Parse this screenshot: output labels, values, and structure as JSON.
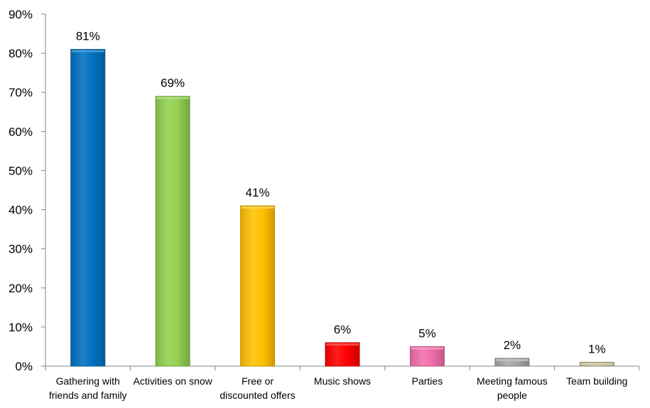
{
  "chart_data": {
    "type": "bar",
    "title": "",
    "xlabel": "",
    "ylabel": "",
    "categories": [
      [
        "Gathering with",
        "friends and family"
      ],
      [
        "Activities on snow"
      ],
      [
        "Free or",
        "discounted offers"
      ],
      [
        "Music shows"
      ],
      [
        "Parties"
      ],
      [
        "Meeting famous",
        "people"
      ],
      [
        "Team building"
      ]
    ],
    "values": [
      81,
      69,
      41,
      6,
      5,
      2,
      1
    ],
    "data_labels": [
      "81%",
      "69%",
      "41%",
      "6%",
      "5%",
      "2%",
      "1%"
    ],
    "colors": [
      "#0070C0",
      "#92D050",
      "#FFC000",
      "#FF0000",
      "#F06EAA",
      "#A6A6A6",
      "#C4BD97"
    ],
    "ylim": [
      0,
      90
    ],
    "yticks": [
      0,
      10,
      20,
      30,
      40,
      50,
      60,
      70,
      80,
      90
    ],
    "ytick_labels": [
      "0%",
      "10%",
      "20%",
      "30%",
      "40%",
      "50%",
      "60%",
      "70%",
      "80%",
      "90%"
    ],
    "grid": false,
    "legend": "none"
  }
}
